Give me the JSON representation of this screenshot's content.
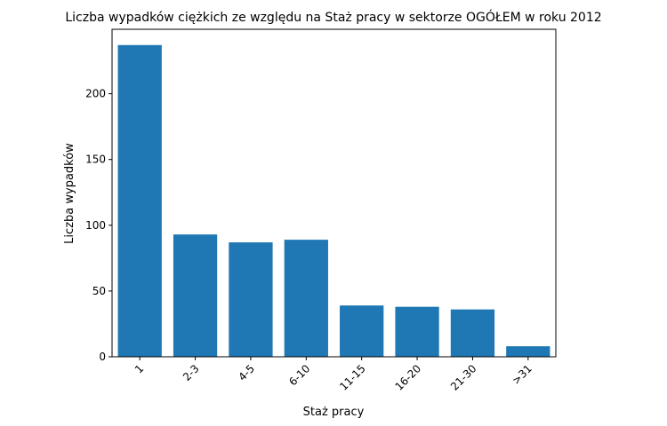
{
  "chart_data": {
    "type": "bar",
    "title": "Liczba wypadków ciężkich ze względu na Staż pracy w sektorze OGÓŁEM   w roku 2012",
    "xlabel": "Staż pracy",
    "ylabel": "Liczba wypadków",
    "categories": [
      "1",
      "2-3",
      "4-5",
      "6-10",
      "11-15",
      "16-20",
      "21-30",
      ">31"
    ],
    "values": [
      237,
      93,
      87,
      89,
      39,
      38,
      36,
      8
    ],
    "ylim": [
      0,
      249
    ],
    "yticks": [
      0,
      50,
      100,
      150,
      200
    ],
    "grid": false,
    "bar_color": "#1f77b4"
  }
}
